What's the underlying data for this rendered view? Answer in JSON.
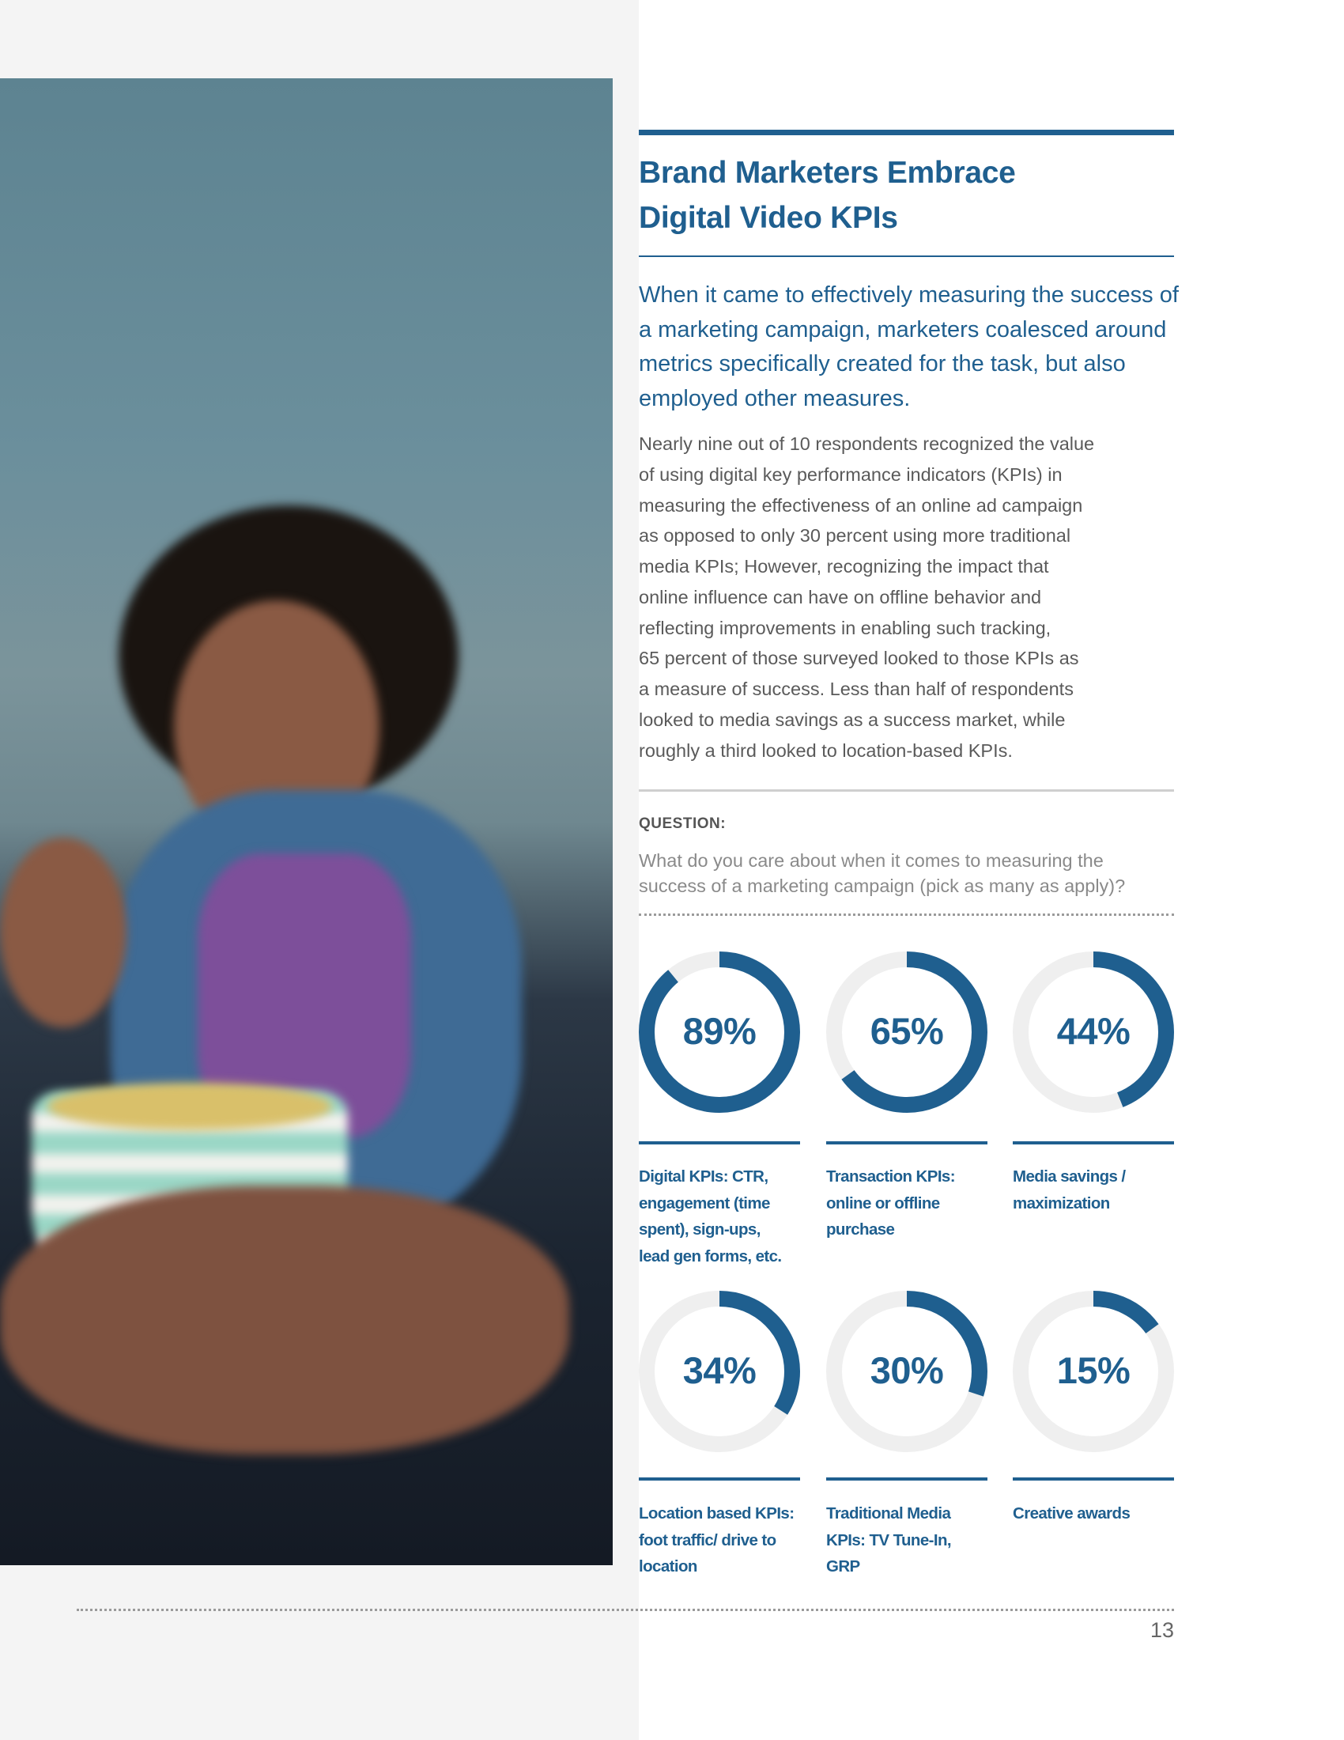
{
  "article": {
    "title_line1": "Brand Marketers Embrace",
    "title_line2": "Digital Video KPIs",
    "lead": "When it came to effectively measuring the success of a marketing campaign, marketers coalesced around metrics specifically created for the task, but also employed other measures.",
    "body_lines": [
      "Nearly nine out of 10 respondents recognized the value",
      "of using digital key performance indicators (KPIs) in",
      "measuring the effectiveness of an online ad campaign",
      "as opposed to only 30 percent using more traditional",
      "media KPIs; However, recognizing the impact that",
      "online influence can have on offline behavior and",
      "reflecting improvements in enabling such tracking,",
      "65 percent of those surveyed looked to those KPIs as",
      "a measure of success. Less than half of respondents",
      "looked to media savings as a success market, while",
      "roughly a third looked to location-based KPIs."
    ],
    "question_label": "QUESTION:",
    "question_line1": "What do you care about when it comes to measuring the",
    "question_line2": "success of a marketing campaign (pick as many as apply)?"
  },
  "chart_data": {
    "type": "donut",
    "unit": "%",
    "colors": {
      "fill": "#1f5f8f",
      "track": "#efefef"
    },
    "items": [
      {
        "value": 89,
        "display": "89%",
        "label_lines": [
          "Digital KPIs: CTR,",
          "engagement (time",
          "spent), sign-ups,",
          "lead gen forms, etc."
        ]
      },
      {
        "value": 65,
        "display": "65%",
        "label_lines": [
          "Transaction KPIs:",
          "online or offline",
          "purchase"
        ]
      },
      {
        "value": 44,
        "display": "44%",
        "label_lines": [
          "Media savings /",
          "maximization"
        ]
      },
      {
        "value": 34,
        "display": "34%",
        "label_lines": [
          "Location based KPIs:",
          "foot traffic/ drive to",
          "location"
        ]
      },
      {
        "value": 30,
        "display": "30%",
        "label_lines": [
          "Traditional Media",
          "KPIs: TV Tune-In,",
          "GRP"
        ]
      },
      {
        "value": 15,
        "display": "15%",
        "label_lines": [
          "Creative awards"
        ]
      }
    ]
  },
  "footer": {
    "page_number": "13"
  }
}
